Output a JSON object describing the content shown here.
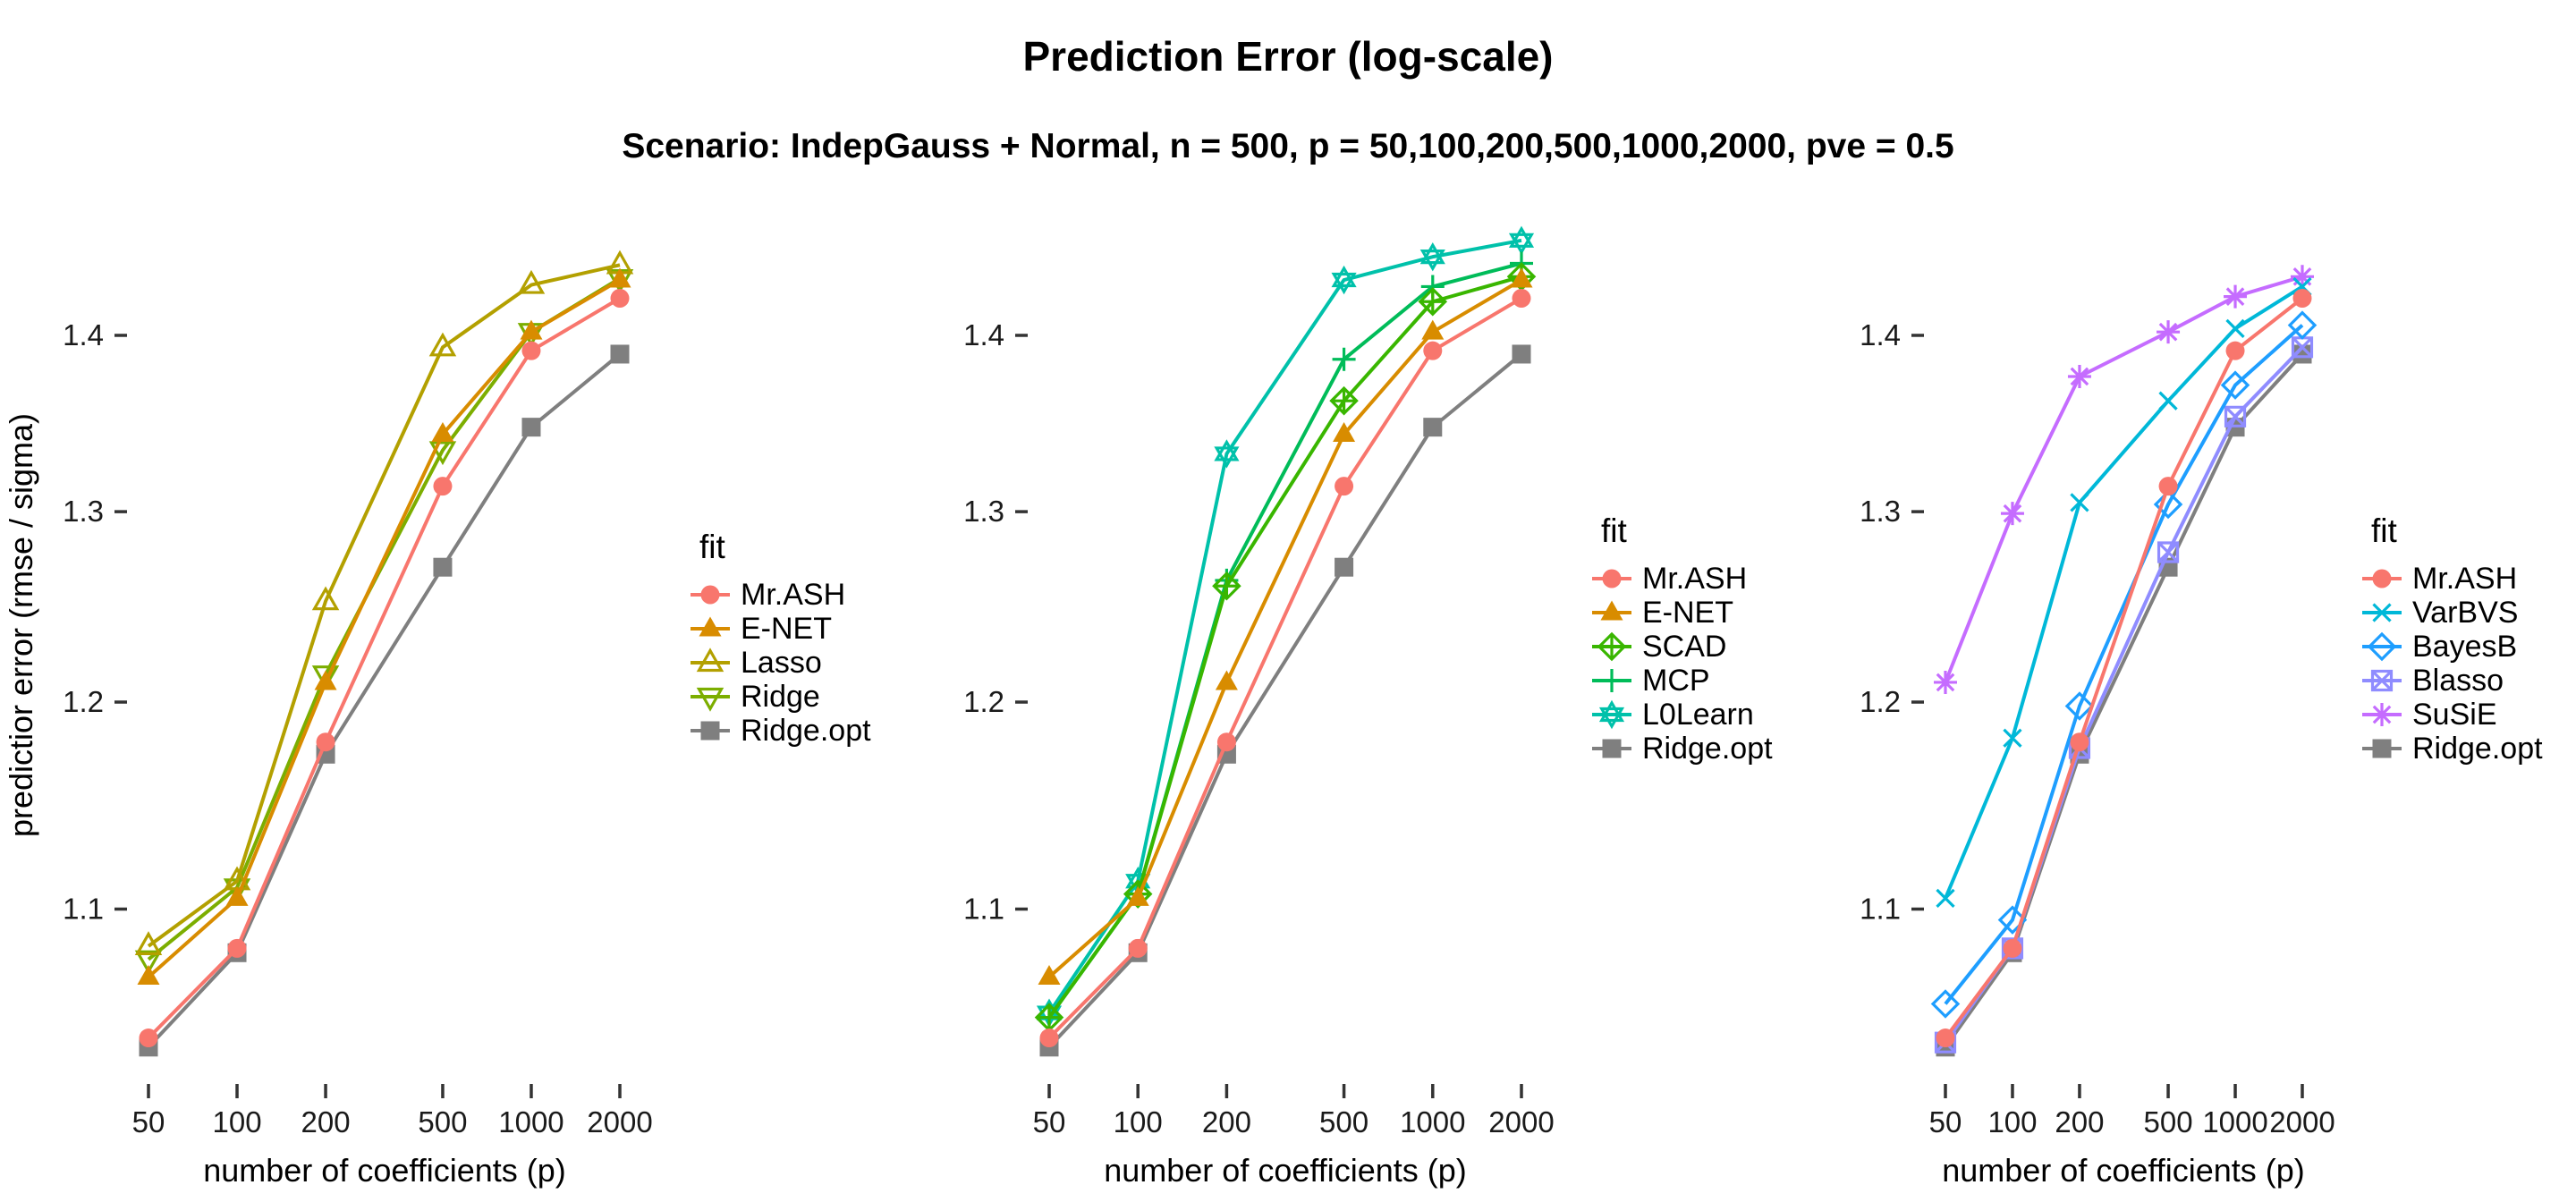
{
  "header": {
    "title": "Prediction Error (log-scale)",
    "subtitle": "Scenario: IndepGauss + Normal, n = 500, p = 50,100,200,500,1000,2000, pve = 0.5"
  },
  "axes": {
    "y_title": "predictior error (rmse / sigma)",
    "x_title": "number of coefficients (p)",
    "x_tick_labels": [
      "50",
      "100",
      "200",
      "500",
      "1000",
      "2000"
    ],
    "y_tick_labels": [
      "1.1",
      "1.2",
      "1.3",
      "1.4"
    ]
  },
  "legend_title": "fit",
  "chart_data": {
    "type": "line",
    "x_scale": "log",
    "y_scale": "log",
    "x": [
      50,
      100,
      200,
      500,
      1000,
      2000
    ],
    "x_ticks": [
      50,
      100,
      200,
      500,
      1000,
      2000
    ],
    "y_ticks": [
      1.1,
      1.2,
      1.3,
      1.4
    ],
    "ylim": [
      1.02,
      1.47
    ],
    "xlabel": "number of coefficients (p)",
    "ylabel": "predictior error (rmse / sigma)",
    "grid": false,
    "legend_position": "right",
    "panels": [
      {
        "name": "panel-1",
        "series": [
          {
            "name": "Mr.ASH",
            "color": "#F8766D",
            "marker": "circle-filled",
            "values": [
              1.042,
              1.082,
              1.18,
              1.314,
              1.391,
              1.422
            ]
          },
          {
            "name": "E-NET",
            "color": "#D88C00",
            "marker": "triangle-filled",
            "values": [
              1.069,
              1.105,
              1.21,
              1.343,
              1.402,
              1.433
            ]
          },
          {
            "name": "Lasso",
            "color": "#B3A000",
            "marker": "triangle-open",
            "values": [
              1.083,
              1.113,
              1.252,
              1.393,
              1.43,
              1.442
            ]
          },
          {
            "name": "Ridge",
            "color": "#7CAE00",
            "marker": "triangle-down-open",
            "values": [
              1.077,
              1.11,
              1.214,
              1.334,
              1.402,
              1.434
            ]
          },
          {
            "name": "Ridge.opt",
            "color": "#7F7F7F",
            "marker": "square-filled",
            "values": [
              1.038,
              1.08,
              1.174,
              1.27,
              1.347,
              1.389
            ]
          }
        ]
      },
      {
        "name": "panel-2",
        "series": [
          {
            "name": "Mr.ASH",
            "color": "#F8766D",
            "marker": "circle-filled",
            "values": [
              1.042,
              1.082,
              1.18,
              1.314,
              1.391,
              1.422
            ]
          },
          {
            "name": "E-NET",
            "color": "#D88C00",
            "marker": "triangle-filled",
            "values": [
              1.069,
              1.105,
              1.21,
              1.343,
              1.402,
              1.433
            ]
          },
          {
            "name": "SCAD",
            "color": "#39B600",
            "marker": "diamond-plus",
            "values": [
              1.051,
              1.107,
              1.26,
              1.362,
              1.42,
              1.435
            ]
          },
          {
            "name": "MCP",
            "color": "#00BC59",
            "marker": "plus",
            "values": [
              1.051,
              1.107,
              1.263,
              1.386,
              1.429,
              1.443
            ]
          },
          {
            "name": "L0Learn",
            "color": "#00C1AA",
            "marker": "star6",
            "values": [
              1.053,
              1.113,
              1.332,
              1.433,
              1.447,
              1.457
            ]
          },
          {
            "name": "Ridge.opt",
            "color": "#7F7F7F",
            "marker": "square-filled",
            "values": [
              1.038,
              1.08,
              1.174,
              1.27,
              1.347,
              1.389
            ]
          }
        ]
      },
      {
        "name": "panel-3",
        "series": [
          {
            "name": "Mr.ASH",
            "color": "#F8766D",
            "marker": "circle-filled",
            "values": [
              1.042,
              1.082,
              1.18,
              1.314,
              1.391,
              1.422
            ]
          },
          {
            "name": "VarBVS",
            "color": "#00B8D8",
            "marker": "x",
            "values": [
              1.105,
              1.182,
              1.305,
              1.362,
              1.404,
              1.429
            ]
          },
          {
            "name": "BayesB",
            "color": "#1E9EFF",
            "marker": "diamond-open",
            "values": [
              1.057,
              1.095,
              1.198,
              1.304,
              1.371,
              1.406
            ]
          },
          {
            "name": "Blasso",
            "color": "#8F8CFF",
            "marker": "square-x",
            "values": [
              1.04,
              1.082,
              1.177,
              1.278,
              1.353,
              1.393
            ]
          },
          {
            "name": "SuSiE",
            "color": "#C56CFF",
            "marker": "asterisk",
            "values": [
              1.21,
              1.299,
              1.376,
              1.402,
              1.423,
              1.435
            ]
          },
          {
            "name": "Ridge.opt",
            "color": "#7F7F7F",
            "marker": "square-filled",
            "values": [
              1.038,
              1.08,
              1.174,
              1.27,
              1.347,
              1.389
            ]
          }
        ]
      }
    ]
  }
}
